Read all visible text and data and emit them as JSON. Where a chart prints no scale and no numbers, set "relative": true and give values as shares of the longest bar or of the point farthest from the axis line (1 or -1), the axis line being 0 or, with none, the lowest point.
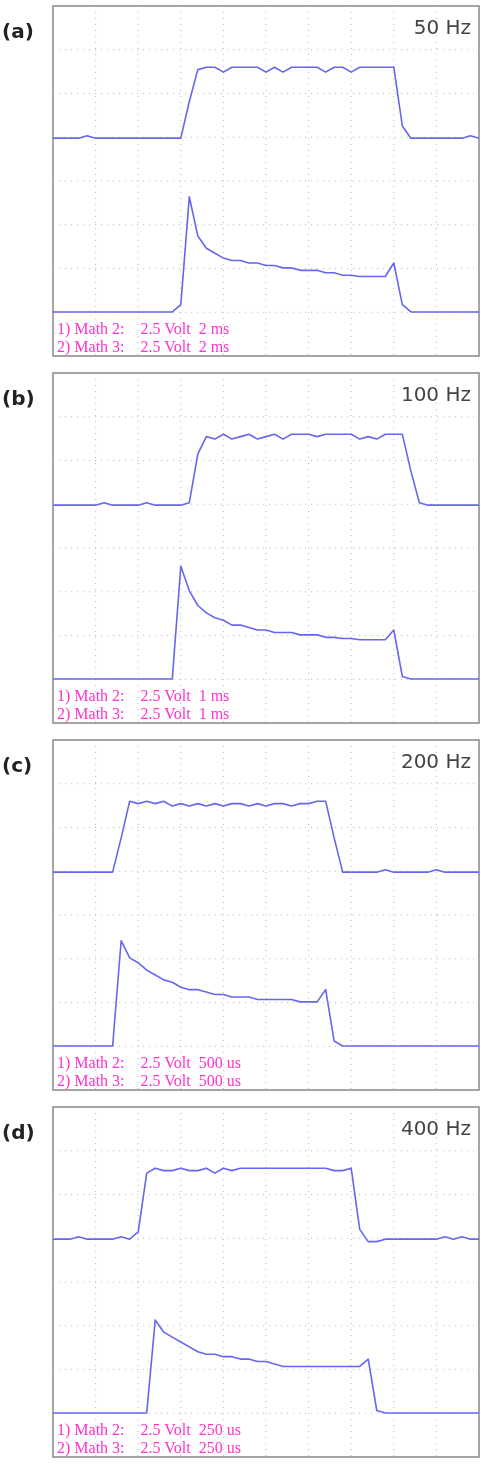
{
  "chart_data": [
    {
      "type": "line",
      "title": "(a)",
      "subtitle": "50 Hz",
      "relative": true,
      "grid": true,
      "annotations": [
        "1) Math 2:    2.5 Volt  2 ms",
        "2) Math 3:    2.5 Volt  2 ms"
      ],
      "categories": [
        null,
        null,
        null,
        null,
        null,
        null,
        null,
        null,
        null,
        null,
        null,
        null,
        null,
        null,
        null,
        null,
        null,
        null,
        null,
        null,
        null,
        null,
        null,
        null,
        null,
        null,
        null,
        null,
        null,
        null,
        null,
        null,
        null,
        null,
        null,
        null,
        null,
        null,
        null,
        null,
        null,
        null,
        null,
        null,
        null,
        null,
        null,
        null,
        null,
        null,
        null
      ],
      "series": [
        {
          "color": "#6666ee",
          "values": [
            0.71,
            0.71,
            0.71,
            0.71,
            0.72,
            0.71,
            0.71,
            0.71,
            0.71,
            0.71,
            0.71,
            0.71,
            0.71,
            0.71,
            0.71,
            0.71,
            0.86,
            0.99,
            1.0,
            1.0,
            0.98,
            1.0,
            1.0,
            1.0,
            1.0,
            0.98,
            1.0,
            0.98,
            1.0,
            1.0,
            1.0,
            1.0,
            0.98,
            1.0,
            1.0,
            0.98,
            1.0,
            1.0,
            1.0,
            1.0,
            1.0,
            0.76,
            0.71,
            0.71,
            0.71,
            0.71,
            0.71,
            0.71,
            0.71,
            0.72,
            0.71
          ]
        },
        {
          "color": "#6666ee",
          "values": [
            0,
            0,
            0,
            0,
            0,
            0,
            0,
            0,
            0,
            0,
            0,
            0,
            0,
            0,
            0,
            0.03,
            0.47,
            0.31,
            0.26,
            0.24,
            0.22,
            0.21,
            0.21,
            0.2,
            0.2,
            0.19,
            0.19,
            0.18,
            0.18,
            0.17,
            0.17,
            0.17,
            0.16,
            0.16,
            0.15,
            0.15,
            0.145,
            0.145,
            0.145,
            0.145,
            0.2,
            0.03,
            0,
            0,
            0,
            0,
            0,
            0,
            0,
            0,
            0
          ]
        }
      ]
    },
    {
      "type": "line",
      "title": "(b)",
      "subtitle": "100 Hz",
      "relative": true,
      "grid": true,
      "annotations": [
        "1) Math 2:    2.5 Volt  1 ms",
        "2) Math 3:    2.5 Volt  1 ms"
      ],
      "categories": [
        null,
        null,
        null,
        null,
        null,
        null,
        null,
        null,
        null,
        null,
        null,
        null,
        null,
        null,
        null,
        null,
        null,
        null,
        null,
        null,
        null,
        null,
        null,
        null,
        null,
        null,
        null,
        null,
        null,
        null,
        null,
        null,
        null,
        null,
        null,
        null,
        null,
        null,
        null,
        null,
        null,
        null,
        null,
        null,
        null,
        null,
        null,
        null,
        null,
        null,
        null
      ],
      "series": [
        {
          "color": "#6666ee",
          "values": [
            0.71,
            0.71,
            0.71,
            0.71,
            0.71,
            0.71,
            0.72,
            0.71,
            0.71,
            0.71,
            0.71,
            0.72,
            0.71,
            0.71,
            0.71,
            0.71,
            0.72,
            0.92,
            0.99,
            0.98,
            1.0,
            0.98,
            0.99,
            1.0,
            0.98,
            0.99,
            1.0,
            0.98,
            1.0,
            1.0,
            1.0,
            0.99,
            1.0,
            1.0,
            1.0,
            1.0,
            0.98,
            0.99,
            0.98,
            1.0,
            1.0,
            1.0,
            0.85,
            0.72,
            0.71,
            0.71,
            0.71,
            0.71,
            0.71,
            0.71,
            0.71
          ]
        },
        {
          "color": "#6666ee",
          "values": [
            0,
            0,
            0,
            0,
            0,
            0,
            0,
            0,
            0,
            0,
            0,
            0,
            0,
            0,
            0,
            0.46,
            0.36,
            0.3,
            0.27,
            0.25,
            0.24,
            0.22,
            0.22,
            0.21,
            0.2,
            0.2,
            0.19,
            0.19,
            0.19,
            0.18,
            0.18,
            0.18,
            0.17,
            0.17,
            0.165,
            0.165,
            0.16,
            0.16,
            0.16,
            0.16,
            0.2,
            0.01,
            0,
            0,
            0,
            0,
            0,
            0,
            0,
            0,
            0
          ]
        }
      ]
    },
    {
      "type": "line",
      "title": "(c)",
      "subtitle": "200 Hz",
      "relative": true,
      "grid": true,
      "annotations": [
        "1) Math 2:    2.5 Volt  500 us",
        "2) Math 3:    2.5 Volt  500 us"
      ],
      "categories": [
        null,
        null,
        null,
        null,
        null,
        null,
        null,
        null,
        null,
        null,
        null,
        null,
        null,
        null,
        null,
        null,
        null,
        null,
        null,
        null,
        null,
        null,
        null,
        null,
        null,
        null,
        null,
        null,
        null,
        null,
        null,
        null,
        null,
        null,
        null,
        null,
        null,
        null,
        null,
        null,
        null,
        null,
        null,
        null,
        null,
        null,
        null,
        null,
        null,
        null,
        null
      ],
      "series": [
        {
          "color": "#6666ee",
          "values": [
            0.71,
            0.71,
            0.71,
            0.71,
            0.71,
            0.71,
            0.71,
            0.71,
            0.85,
            1.0,
            0.99,
            1.0,
            0.99,
            1.0,
            0.98,
            0.99,
            0.98,
            0.99,
            0.98,
            0.99,
            0.98,
            0.99,
            0.99,
            0.98,
            0.99,
            0.98,
            0.99,
            0.99,
            0.98,
            0.99,
            0.99,
            1.0,
            1.0,
            0.85,
            0.71,
            0.71,
            0.71,
            0.71,
            0.71,
            0.72,
            0.71,
            0.71,
            0.71,
            0.71,
            0.71,
            0.72,
            0.71,
            0.71,
            0.71,
            0.71,
            0.71
          ]
        },
        {
          "color": "#6666ee",
          "values": [
            0,
            0,
            0,
            0,
            0,
            0,
            0,
            0,
            0.43,
            0.36,
            0.34,
            0.31,
            0.29,
            0.27,
            0.26,
            0.24,
            0.23,
            0.23,
            0.22,
            0.21,
            0.21,
            0.2,
            0.2,
            0.2,
            0.19,
            0.19,
            0.19,
            0.19,
            0.19,
            0.18,
            0.18,
            0.18,
            0.23,
            0.02,
            0,
            0,
            0,
            0,
            0,
            0,
            0,
            0,
            0,
            0,
            0,
            0,
            0,
            0,
            0,
            0,
            0
          ]
        }
      ]
    },
    {
      "type": "line",
      "title": "(d)",
      "subtitle": "400 Hz",
      "relative": true,
      "grid": true,
      "annotations": [
        "1) Math 2:    2.5 Volt  250 us",
        "2) Math 3:    2.5 Volt  250 us"
      ],
      "categories": [
        null,
        null,
        null,
        null,
        null,
        null,
        null,
        null,
        null,
        null,
        null,
        null,
        null,
        null,
        null,
        null,
        null,
        null,
        null,
        null,
        null,
        null,
        null,
        null,
        null,
        null,
        null,
        null,
        null,
        null,
        null,
        null,
        null,
        null,
        null,
        null,
        null,
        null,
        null,
        null,
        null,
        null,
        null,
        null,
        null,
        null,
        null,
        null,
        null,
        null,
        null
      ],
      "series": [
        {
          "color": "#6666ee",
          "values": [
            0.71,
            0.71,
            0.71,
            0.72,
            0.71,
            0.71,
            0.71,
            0.71,
            0.72,
            0.71,
            0.74,
            0.98,
            1.0,
            0.99,
            0.99,
            1.0,
            0.99,
            0.99,
            1.0,
            0.98,
            1.0,
            0.99,
            1.0,
            1.0,
            1.0,
            1.0,
            1.0,
            1.0,
            1.0,
            1.0,
            1.0,
            1.0,
            1.0,
            0.99,
            0.99,
            1.0,
            0.75,
            0.7,
            0.7,
            0.71,
            0.71,
            0.71,
            0.71,
            0.71,
            0.71,
            0.71,
            0.72,
            0.71,
            0.72,
            0.71,
            0.71
          ]
        },
        {
          "color": "#6666ee",
          "values": [
            0,
            0,
            0,
            0,
            0,
            0,
            0,
            0,
            0,
            0,
            0,
            0,
            0.38,
            0.33,
            0.31,
            0.29,
            0.27,
            0.25,
            0.24,
            0.24,
            0.23,
            0.23,
            0.22,
            0.22,
            0.21,
            0.21,
            0.2,
            0.19,
            0.19,
            0.19,
            0.19,
            0.19,
            0.19,
            0.19,
            0.19,
            0.19,
            0.19,
            0.22,
            0.01,
            0,
            0,
            0,
            0,
            0,
            0,
            0,
            0,
            0,
            0,
            0,
            0
          ]
        }
      ]
    }
  ]
}
